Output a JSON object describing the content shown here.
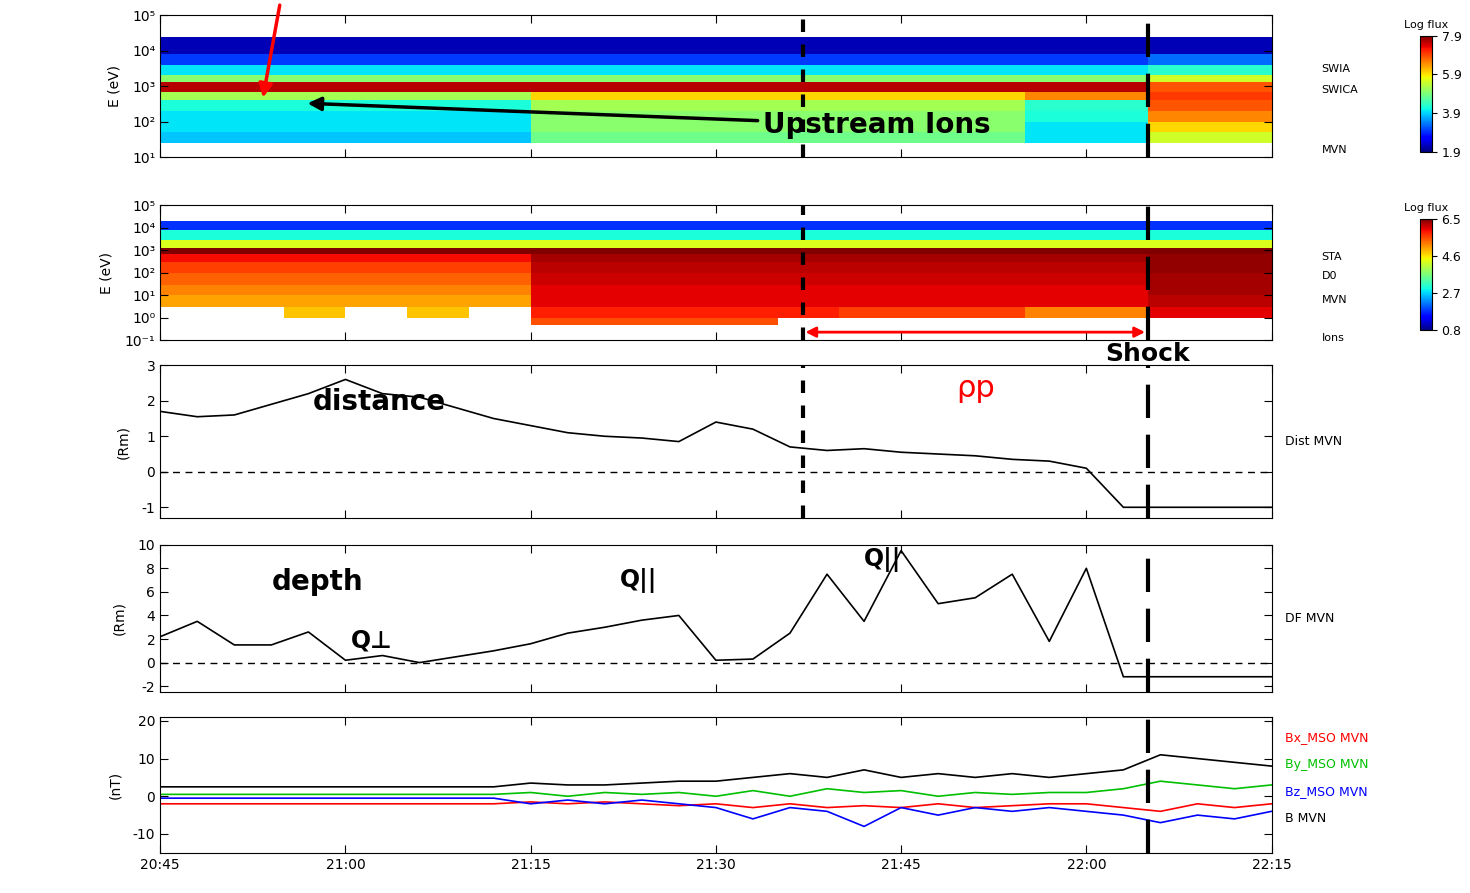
{
  "chart_data": [
    {
      "type": "heatmap",
      "y_label": "E (eV)",
      "log": "y",
      "tick_labels": "y",
      "side_labels": [
        "SWIA",
        "SWICA",
        "MVN"
      ],
      "xlim": [
        20.75,
        22.25
      ],
      "xticks": [
        {
          "value": 20.75,
          "label": "20:45"
        },
        {
          "value": 21.0,
          "label": "21:00"
        },
        {
          "value": 21.25,
          "label": "21:15"
        },
        {
          "value": 21.5,
          "label": "21:30"
        },
        {
          "value": 21.75,
          "label": "21:45"
        },
        {
          "value": 22.0,
          "label": "22:00"
        },
        {
          "value": 22.25,
          "label": "22:15"
        }
      ],
      "ylim": [
        10,
        100000
      ],
      "yticks": [
        {
          "value": 10,
          "label": "10¹"
        },
        {
          "value": 100,
          "label": "10²"
        },
        {
          "value": 1000,
          "label": "10³"
        },
        {
          "value": 10000,
          "label": "10⁴"
        },
        {
          "value": 100000,
          "label": "10⁵"
        }
      ],
      "x_edges": [
        20.75,
        20.8333,
        20.9167,
        21.0,
        21.0833,
        21.1667,
        21.25,
        21.3333,
        21.4167,
        21.5,
        21.5833,
        21.6667,
        21.75,
        21.8333,
        21.9167,
        22.0,
        22.0833,
        22.1667,
        22.25
      ],
      "y_edges": [
        25,
        50,
        100,
        200,
        400,
        700,
        1300,
        2000,
        4000,
        8000,
        25000
      ],
      "cells": [
        [
          3.8,
          3.8,
          3.8,
          3.8,
          3.8,
          3.8,
          4.8,
          4.8,
          4.8,
          4.8,
          4.8,
          4.8,
          4.8,
          4.8,
          4.0,
          4.0,
          5.5,
          5.5
        ],
        [
          4.0,
          4.0,
          4.0,
          4.0,
          4.0,
          4.0,
          5.0,
          5.0,
          5.0,
          5.0,
          5.0,
          5.0,
          5.0,
          5.0,
          4.0,
          4.0,
          6.0,
          6.0
        ],
        [
          4.0,
          4.0,
          4.0,
          4.0,
          4.0,
          4.0,
          5.0,
          5.0,
          5.0,
          5.0,
          5.0,
          5.0,
          5.0,
          5.0,
          4.2,
          4.2,
          6.5,
          6.5
        ],
        [
          4.2,
          4.2,
          4.2,
          4.2,
          4.2,
          4.2,
          5.2,
          5.2,
          5.2,
          5.2,
          5.2,
          5.2,
          5.2,
          5.2,
          4.3,
          4.3,
          6.8,
          6.8
        ],
        [
          5.2,
          5.2,
          5.2,
          5.2,
          5.2,
          5.2,
          6.0,
          6.0,
          6.0,
          6.0,
          6.0,
          6.0,
          6.0,
          6.0,
          6.5,
          6.5,
          7.0,
          7.0
        ],
        [
          7.6,
          7.6,
          7.6,
          7.6,
          7.6,
          7.6,
          7.6,
          7.6,
          7.6,
          7.6,
          7.6,
          7.6,
          7.6,
          7.6,
          7.6,
          7.6,
          6.8,
          6.8
        ],
        [
          5.0,
          5.0,
          5.0,
          5.0,
          5.0,
          5.0,
          5.0,
          5.0,
          5.0,
          5.0,
          5.0,
          5.0,
          5.0,
          5.0,
          5.0,
          5.0,
          5.5,
          5.5
        ],
        [
          4.0,
          4.0,
          4.0,
          4.0,
          4.0,
          4.0,
          4.0,
          4.0,
          4.0,
          4.0,
          4.0,
          4.0,
          4.0,
          4.0,
          4.0,
          4.0,
          4.3,
          4.3
        ],
        [
          3.0,
          3.0,
          3.0,
          3.0,
          3.0,
          3.0,
          3.0,
          3.0,
          3.0,
          3.0,
          3.0,
          3.0,
          3.0,
          3.0,
          3.0,
          3.0,
          3.3,
          3.3
        ],
        [
          2.2,
          2.2,
          2.2,
          2.2,
          2.2,
          2.2,
          2.2,
          2.2,
          2.2,
          2.2,
          2.2,
          2.2,
          2.2,
          2.2,
          2.2,
          2.2,
          2.2,
          2.2
        ]
      ],
      "colorbar": {
        "label": "Log flux",
        "range": [
          1.9,
          7.9
        ],
        "ticks": [
          1.9,
          3.9,
          5.9,
          7.9
        ]
      },
      "vertical_lines": [
        {
          "x": 21.617,
          "line_style": "dotted"
        },
        {
          "x": 22.083,
          "line_style": "dashed"
        }
      ],
      "annotations": [
        {
          "text": "Upstream Ions",
          "color": "#000000"
        }
      ]
    },
    {
      "type": "heatmap",
      "y_label": "E (eV)",
      "log": "y",
      "tick_labels": "y",
      "side_labels": [
        "STA",
        "D0",
        "MVN",
        "Ions"
      ],
      "xlim": [
        20.75,
        22.25
      ],
      "xticks": [
        {
          "value": 20.75,
          "label": "20:45"
        },
        {
          "value": 21.0,
          "label": "21:00"
        },
        {
          "value": 21.25,
          "label": "21:15"
        },
        {
          "value": 21.5,
          "label": "21:30"
        },
        {
          "value": 21.75,
          "label": "21:45"
        },
        {
          "value": 22.0,
          "label": "22:00"
        },
        {
          "value": 22.25,
          "label": "22:15"
        }
      ],
      "ylim": [
        0.1,
        100000
      ],
      "yticks": [
        {
          "value": 0.1,
          "label": "10⁻¹"
        },
        {
          "value": 1,
          "label": "10⁰"
        },
        {
          "value": 10,
          "label": "10¹"
        },
        {
          "value": 100,
          "label": "10²"
        },
        {
          "value": 1000,
          "label": "10³"
        },
        {
          "value": 10000,
          "label": "10⁴"
        },
        {
          "value": 100000,
          "label": "10⁵"
        }
      ],
      "x_edges": [
        20.75,
        20.8333,
        20.9167,
        21.0,
        21.0833,
        21.1667,
        21.25,
        21.3333,
        21.4167,
        21.5,
        21.5833,
        21.6667,
        21.75,
        21.8333,
        21.9167,
        22.0,
        22.0833,
        22.1667,
        22.25
      ],
      "y_edges": [
        0.5,
        1,
        3,
        10,
        30,
        100,
        300,
        700,
        1300,
        3000,
        8000,
        20000
      ],
      "cells": [
        [
          null,
          null,
          null,
          null,
          null,
          null,
          5.5,
          5.5,
          5.5,
          5.5,
          null,
          null,
          null,
          null,
          null,
          null,
          null,
          null
        ],
        [
          null,
          null,
          4.8,
          null,
          4.8,
          null,
          5.8,
          5.8,
          5.8,
          5.8,
          5.8,
          5.6,
          5.6,
          5.6,
          5.2,
          5.2,
          6.0,
          6.0
        ],
        [
          5.0,
          5.0,
          5.0,
          5.0,
          5.0,
          5.0,
          6.0,
          6.0,
          6.0,
          6.0,
          6.0,
          6.0,
          6.0,
          6.0,
          6.0,
          6.0,
          6.2,
          6.2
        ],
        [
          5.2,
          5.2,
          5.2,
          5.2,
          5.2,
          5.2,
          6.0,
          6.0,
          6.0,
          6.0,
          6.0,
          6.0,
          6.0,
          6.0,
          6.0,
          6.0,
          6.3,
          6.3
        ],
        [
          5.4,
          5.4,
          5.4,
          5.4,
          5.4,
          5.4,
          6.1,
          6.1,
          6.1,
          6.1,
          6.1,
          6.1,
          6.1,
          6.1,
          6.1,
          6.1,
          6.3,
          6.3
        ],
        [
          5.6,
          5.6,
          5.6,
          5.6,
          5.6,
          5.6,
          6.2,
          6.2,
          6.2,
          6.2,
          6.2,
          6.2,
          6.2,
          6.2,
          6.2,
          6.2,
          6.4,
          6.4
        ],
        [
          5.9,
          5.9,
          5.9,
          5.9,
          5.9,
          5.9,
          6.3,
          6.3,
          6.3,
          6.3,
          6.3,
          6.3,
          6.3,
          6.3,
          6.3,
          6.3,
          6.4,
          6.4
        ],
        [
          6.5,
          6.5,
          6.5,
          6.5,
          6.5,
          6.5,
          6.5,
          6.5,
          6.5,
          6.5,
          6.5,
          6.5,
          6.5,
          6.5,
          6.5,
          6.5,
          6.5,
          6.5
        ],
        [
          4.3,
          4.3,
          4.3,
          4.3,
          4.3,
          4.3,
          4.3,
          4.3,
          4.3,
          4.3,
          4.3,
          4.3,
          4.3,
          4.3,
          4.3,
          4.3,
          4.3,
          4.3
        ],
        [
          3.0,
          3.0,
          3.0,
          3.0,
          3.0,
          3.0,
          3.0,
          3.0,
          3.0,
          3.0,
          3.0,
          3.0,
          3.0,
          3.0,
          3.0,
          3.0,
          3.0,
          3.0
        ],
        [
          1.8,
          1.8,
          1.8,
          1.8,
          1.8,
          1.8,
          1.8,
          1.8,
          1.8,
          1.8,
          1.8,
          1.8,
          1.8,
          1.8,
          1.8,
          1.8,
          1.8,
          1.8
        ]
      ],
      "colorbar": {
        "label": "Log flux",
        "range": [
          0.8,
          6.5
        ],
        "ticks": [
          0.8,
          2.7,
          4.6,
          6.5
        ]
      },
      "vertical_lines": [
        {
          "x": 21.617,
          "line_style": "dotted"
        },
        {
          "x": 22.083,
          "line_style": "dashed"
        }
      ],
      "annotations": [
        {
          "text": "Shock",
          "color": "#000000"
        }
      ]
    },
    {
      "type": "line",
      "y_label": "(Rm)",
      "tick_labels": "y",
      "xlim": [
        20.75,
        22.25
      ],
      "xticks": [
        {
          "value": 20.75,
          "label": "20:45"
        },
        {
          "value": 21.0,
          "label": "21:00"
        },
        {
          "value": 21.25,
          "label": "21:15"
        },
        {
          "value": 21.5,
          "label": "21:30"
        },
        {
          "value": 21.75,
          "label": "21:45"
        },
        {
          "value": 22.0,
          "label": "22:00"
        },
        {
          "value": 22.25,
          "label": "22:15"
        }
      ],
      "ylim": [
        -1.3,
        3
      ],
      "yticks": [
        -1,
        0,
        1,
        2,
        3
      ],
      "reference_y": 0,
      "x": [
        20.75,
        20.8,
        20.85,
        20.9,
        20.95,
        21.0,
        21.05,
        21.1,
        21.15,
        21.2,
        21.25,
        21.3,
        21.35,
        21.4,
        21.45,
        21.5,
        21.55,
        21.6,
        21.65,
        21.7,
        21.75,
        21.8,
        21.85,
        21.9,
        21.95,
        22.0,
        22.05,
        22.1,
        22.15,
        22.2,
        22.25
      ],
      "series": [
        {
          "name": "Dist MVN",
          "color": "#000000",
          "values": [
            1.7,
            1.55,
            1.6,
            1.9,
            2.2,
            2.6,
            2.2,
            2.1,
            1.8,
            1.5,
            1.3,
            1.1,
            1.0,
            0.95,
            0.85,
            1.4,
            1.2,
            0.7,
            0.6,
            0.65,
            0.55,
            0.5,
            0.45,
            0.35,
            0.3,
            0.1,
            -1,
            -1,
            -1,
            -1,
            -1
          ]
        }
      ],
      "vertical_lines": [
        {
          "x": 21.617,
          "line_style": "dotted"
        },
        {
          "x": 22.083,
          "line_style": "dashed"
        }
      ],
      "annotations": [
        {
          "text": "distance",
          "color": "#000000"
        },
        {
          "text": "ρp",
          "color": "#ff0000"
        }
      ]
    },
    {
      "type": "line",
      "y_label": "(Rm)",
      "tick_labels": "y",
      "xlim": [
        20.75,
        22.25
      ],
      "xticks": [
        {
          "value": 20.75,
          "label": "20:45"
        },
        {
          "value": 21.0,
          "label": "21:00"
        },
        {
          "value": 21.25,
          "label": "21:15"
        },
        {
          "value": 21.5,
          "label": "21:30"
        },
        {
          "value": 21.75,
          "label": "21:45"
        },
        {
          "value": 22.0,
          "label": "22:00"
        },
        {
          "value": 22.25,
          "label": "22:15"
        }
      ],
      "ylim": [
        -2.5,
        10
      ],
      "yticks": [
        -2,
        0,
        2,
        4,
        6,
        8,
        10
      ],
      "reference_y": 0,
      "x": [
        20.75,
        20.8,
        20.85,
        20.9,
        20.95,
        21.0,
        21.05,
        21.1,
        21.15,
        21.2,
        21.25,
        21.3,
        21.35,
        21.4,
        21.45,
        21.5,
        21.55,
        21.6,
        21.65,
        21.7,
        21.75,
        21.8,
        21.85,
        21.9,
        21.95,
        22.0,
        22.05,
        22.1,
        22.15,
        22.2,
        22.25
      ],
      "series": [
        {
          "name": "DF MVN",
          "color": "#000000",
          "values": [
            2.2,
            3.5,
            1.5,
            1.5,
            2.6,
            0.2,
            0.6,
            0.0,
            0.5,
            1.0,
            1.6,
            2.5,
            3.0,
            3.6,
            4.0,
            0.2,
            0.3,
            2.5,
            7.5,
            3.5,
            9.5,
            5.0,
            5.5,
            7.5,
            1.8,
            8.0,
            -1.2,
            -1.2,
            -1.2,
            -1.2,
            -1.2
          ]
        }
      ],
      "vertical_lines": [
        {
          "x": 22.083,
          "line_style": "dashed"
        }
      ],
      "annotations": [
        {
          "text": "depth",
          "color": "#000000"
        },
        {
          "text": "Q⊥",
          "color": "#000000"
        },
        {
          "text": "Q||",
          "color": "#000000"
        },
        {
          "text": "Q||",
          "color": "#000000"
        }
      ]
    },
    {
      "type": "line",
      "y_label": "(nT)",
      "xlim": [
        20.75,
        22.25
      ],
      "xticks": [
        {
          "value": 20.75,
          "label": "20:45"
        },
        {
          "value": 21.0,
          "label": "21:00"
        },
        {
          "value": 21.25,
          "label": "21:15"
        },
        {
          "value": 21.5,
          "label": "21:30"
        },
        {
          "value": 21.75,
          "label": "21:45"
        },
        {
          "value": 22.0,
          "label": "22:00"
        },
        {
          "value": 22.25,
          "label": "22:15"
        }
      ],
      "ylim": [
        -15,
        21
      ],
      "yticks": [
        -10,
        0,
        10,
        20
      ],
      "x": [
        20.75,
        20.8,
        20.85,
        20.9,
        20.95,
        21.0,
        21.05,
        21.1,
        21.15,
        21.2,
        21.25,
        21.3,
        21.35,
        21.4,
        21.45,
        21.5,
        21.55,
        21.6,
        21.65,
        21.7,
        21.75,
        21.8,
        21.85,
        21.9,
        21.95,
        22.0,
        22.05,
        22.1,
        22.15,
        22.2,
        22.25
      ],
      "series": [
        {
          "name": "Bx_MSO MVN",
          "color": "#ff0000",
          "values": [
            -2,
            -2,
            -2,
            -2,
            -2,
            -2,
            -2,
            -2,
            -2,
            -2,
            -1.5,
            -2,
            -1.5,
            -2,
            -2.5,
            -2,
            -3,
            -2,
            -3,
            -2.5,
            -3,
            -2,
            -3,
            -2.5,
            -2,
            -2,
            -3,
            -4,
            -2,
            -3,
            -2
          ]
        },
        {
          "name": "By_MSO MVN",
          "color": "#00c000",
          "values": [
            0.5,
            0.5,
            0.5,
            0.5,
            0.5,
            0.5,
            0.5,
            0.5,
            0.5,
            0.5,
            1,
            0,
            1,
            0.5,
            1,
            0,
            1.5,
            0,
            2,
            1,
            1.5,
            0,
            1,
            0.5,
            1,
            1,
            2,
            4,
            3,
            2,
            3
          ]
        },
        {
          "name": "Bz_MSO MVN",
          "color": "#0000ff",
          "values": [
            -0.5,
            -0.5,
            -0.5,
            -0.5,
            -0.5,
            -0.5,
            -0.5,
            -0.5,
            -0.5,
            -0.5,
            -2,
            -1,
            -2,
            -1,
            -2,
            -3,
            -6,
            -3,
            -4,
            -8,
            -3,
            -5,
            -3,
            -4,
            -3,
            -4,
            -5,
            -7,
            -5,
            -6,
            -4
          ]
        },
        {
          "name": "B MVN",
          "color": "#000000",
          "values": [
            2.5,
            2.5,
            2.5,
            2.5,
            2.5,
            2.5,
            2.5,
            2.5,
            2.5,
            2.5,
            3.5,
            3,
            3,
            3.5,
            4,
            4,
            5,
            6,
            5,
            7,
            5,
            6,
            5,
            6,
            5,
            6,
            7,
            11,
            10,
            9,
            8
          ]
        }
      ],
      "vertical_lines": [
        {
          "x": 22.083,
          "line_style": "dashed"
        }
      ],
      "annotations": []
    }
  ]
}
